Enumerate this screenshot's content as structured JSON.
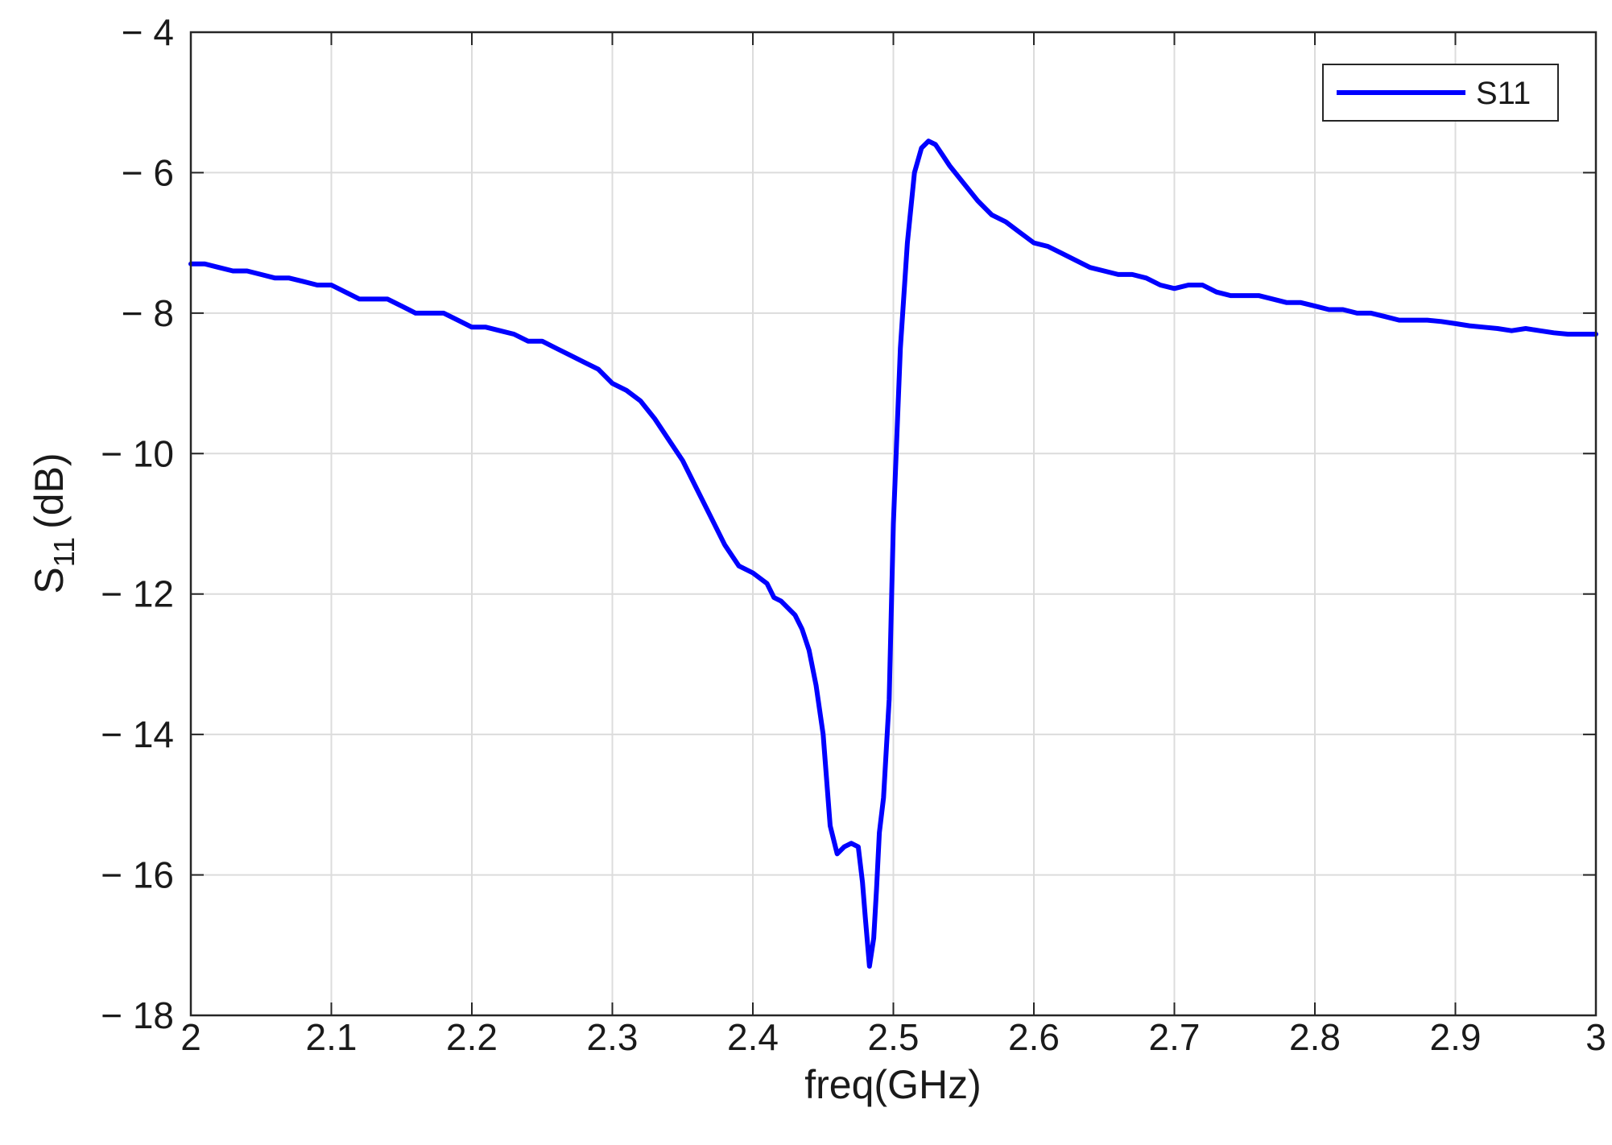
{
  "chart_data": {
    "type": "line",
    "title": "",
    "xlabel": "freq(GHz)",
    "ylabel_main": "S",
    "ylabel_sub": "11",
    "ylabel_unit": "(dB)",
    "xlim": [
      2,
      3
    ],
    "ylim": [
      -18,
      -4
    ],
    "xticks": [
      2,
      2.1,
      2.2,
      2.3,
      2.4,
      2.5,
      2.6,
      2.7,
      2.8,
      2.9,
      3
    ],
    "xtick_labels": [
      "2",
      "2.1",
      "2.2",
      "2.3",
      "2.4",
      "2.5",
      "2.6",
      "2.7",
      "2.8",
      "2.9",
      "3"
    ],
    "yticks": [
      -18,
      -16,
      -14,
      -12,
      -10,
      -8,
      -6,
      -4
    ],
    "ytick_labels": [
      "− 18",
      "− 16",
      "− 14",
      "− 12",
      "− 10",
      "− 8",
      "− 6",
      "− 4"
    ],
    "grid": true,
    "legend_position": "top-right",
    "series": [
      {
        "name": "S11",
        "color": "#0000ff",
        "x": [
          2.0,
          2.01,
          2.02,
          2.03,
          2.04,
          2.05,
          2.06,
          2.07,
          2.08,
          2.09,
          2.1,
          2.11,
          2.12,
          2.13,
          2.14,
          2.15,
          2.16,
          2.17,
          2.18,
          2.19,
          2.2,
          2.21,
          2.22,
          2.23,
          2.24,
          2.25,
          2.26,
          2.27,
          2.28,
          2.29,
          2.3,
          2.31,
          2.32,
          2.33,
          2.34,
          2.35,
          2.36,
          2.37,
          2.38,
          2.39,
          2.4,
          2.41,
          2.415,
          2.42,
          2.43,
          2.435,
          2.44,
          2.445,
          2.45,
          2.455,
          2.46,
          2.465,
          2.47,
          2.475,
          2.478,
          2.48,
          2.483,
          2.486,
          2.488,
          2.49,
          2.493,
          2.497,
          2.5,
          2.505,
          2.51,
          2.515,
          2.52,
          2.525,
          2.53,
          2.535,
          2.54,
          2.55,
          2.56,
          2.57,
          2.58,
          2.59,
          2.6,
          2.61,
          2.62,
          2.63,
          2.64,
          2.65,
          2.66,
          2.67,
          2.68,
          2.69,
          2.7,
          2.71,
          2.72,
          2.73,
          2.74,
          2.75,
          2.76,
          2.77,
          2.78,
          2.79,
          2.8,
          2.81,
          2.82,
          2.83,
          2.84,
          2.85,
          2.86,
          2.87,
          2.88,
          2.89,
          2.9,
          2.91,
          2.92,
          2.93,
          2.94,
          2.95,
          2.96,
          2.97,
          2.98,
          2.99,
          3.0
        ],
        "y": [
          -7.3,
          -7.3,
          -7.35,
          -7.4,
          -7.4,
          -7.45,
          -7.5,
          -7.5,
          -7.55,
          -7.6,
          -7.6,
          -7.7,
          -7.8,
          -7.8,
          -7.8,
          -7.9,
          -8.0,
          -8.0,
          -8.0,
          -8.1,
          -8.2,
          -8.2,
          -8.25,
          -8.3,
          -8.4,
          -8.4,
          -8.5,
          -8.6,
          -8.7,
          -8.8,
          -9.0,
          -9.1,
          -9.25,
          -9.5,
          -9.8,
          -10.1,
          -10.5,
          -10.9,
          -11.3,
          -11.6,
          -11.7,
          -11.85,
          -12.05,
          -12.1,
          -12.3,
          -12.5,
          -12.8,
          -13.3,
          -14.0,
          -15.3,
          -15.7,
          -15.6,
          -15.55,
          -15.6,
          -16.1,
          -16.6,
          -17.3,
          -16.9,
          -16.2,
          -15.4,
          -14.9,
          -13.5,
          -11.0,
          -8.5,
          -7.0,
          -6.0,
          -5.65,
          -5.55,
          -5.6,
          -5.75,
          -5.9,
          -6.15,
          -6.4,
          -6.6,
          -6.7,
          -6.85,
          -7.0,
          -7.05,
          -7.15,
          -7.25,
          -7.35,
          -7.4,
          -7.45,
          -7.45,
          -7.5,
          -7.6,
          -7.65,
          -7.6,
          -7.6,
          -7.7,
          -7.75,
          -7.75,
          -7.75,
          -7.8,
          -7.85,
          -7.85,
          -7.9,
          -7.95,
          -7.95,
          -8.0,
          -8.0,
          -8.05,
          -8.1,
          -8.1,
          -8.1,
          -8.12,
          -8.15,
          -8.18,
          -8.2,
          -8.22,
          -8.25,
          -8.22,
          -8.25,
          -8.28,
          -8.3,
          -8.3,
          -8.3
        ]
      }
    ]
  }
}
